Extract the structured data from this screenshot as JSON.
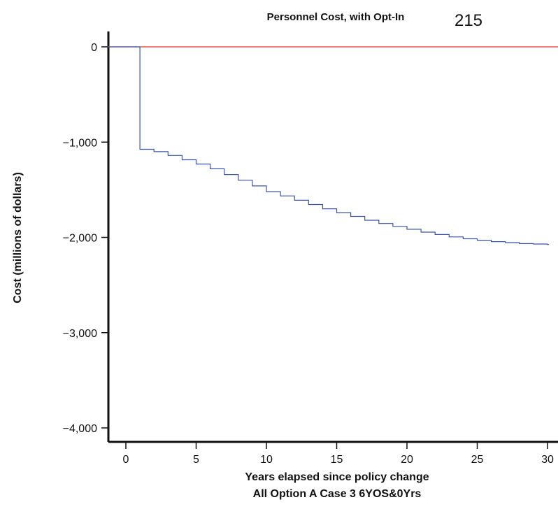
{
  "page_number": "215",
  "chart_data": {
    "type": "line",
    "title": "Personnel Cost, with Opt-In",
    "xlabel": "Years elapsed since policy change",
    "subtitle": "All Option A Case 3 6YOS&0Yrs",
    "ylabel": "Cost (millions of dollars)",
    "xlim": [
      -1.3,
      30.6
    ],
    "ylim": [
      -4150,
      200
    ],
    "x_ticks": [
      0,
      5,
      10,
      15,
      20,
      25,
      30
    ],
    "y_ticks": [
      0,
      -1000,
      -2000,
      -3000,
      -4000
    ],
    "x_tick_labels": [
      "0",
      "5",
      "10",
      "15",
      "20",
      "25",
      "30"
    ],
    "y_tick_labels": [
      "0",
      "−1,000",
      "−2,000",
      "−3,000",
      "−4,000"
    ],
    "grid": false,
    "reference_line": {
      "y": 0,
      "color": "#e03030"
    },
    "series": [
      {
        "color": "#3a55a8",
        "step": true,
        "x": [
          -1.3,
          1,
          2,
          3,
          4,
          5,
          6,
          7,
          8,
          9,
          10,
          11,
          12,
          13,
          14,
          15,
          16,
          17,
          18,
          19,
          20,
          21,
          22,
          23,
          24,
          25,
          26,
          27,
          28,
          29,
          30
        ],
        "y": [
          0,
          -1075,
          -1100,
          -1140,
          -1185,
          -1230,
          -1280,
          -1340,
          -1400,
          -1460,
          -1520,
          -1565,
          -1610,
          -1655,
          -1700,
          -1740,
          -1780,
          -1820,
          -1855,
          -1885,
          -1915,
          -1945,
          -1970,
          -1995,
          -2015,
          -2030,
          -2045,
          -2055,
          -2065,
          -2070,
          -2075
        ]
      }
    ]
  }
}
